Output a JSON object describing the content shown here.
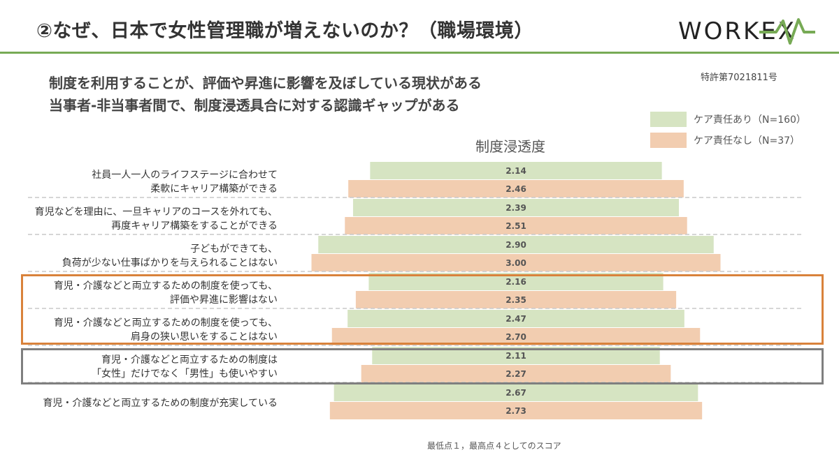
{
  "slide": {
    "title": "②なぜ、日本で女性管理職が増えないのか？（職場環境）",
    "logo": "WORKEX",
    "headline1": "制度を利用することが、評価や昇進に影響を及ぼしている現状がある",
    "headline2": "当事者-非当事者間で、制度浸透具合に対する認識ギャップがある",
    "patent": "特許第7021811号",
    "note": "最低点１，最高点４としてのスコア"
  },
  "colors": {
    "green": "#d6e4c2",
    "orange": "#f2cdb0",
    "rule": "#77aa55",
    "highlight_orange": "#d9823b",
    "highlight_gray": "#7f7f7f"
  },
  "chart_data": {
    "type": "bar",
    "orientation": "horizontal-centered",
    "title": "制度浸透度",
    "scale_note": "最低点１，最高点４としてのスコア",
    "series": [
      {
        "name": "ケア責任あり（N=160）",
        "color": "#d6e4c2",
        "values": [
          2.14,
          2.39,
          2.9,
          2.16,
          2.47,
          2.11,
          2.67
        ]
      },
      {
        "name": "ケア責任なし（N=37）",
        "color": "#f2cdb0",
        "values": [
          2.46,
          2.51,
          3.0,
          2.35,
          2.7,
          2.27,
          2.73
        ]
      }
    ],
    "value_labels": {
      "with_care": [
        "2.14",
        "2.39",
        "2.90",
        "2.16",
        "2.47",
        "2.11",
        "2.67"
      ],
      "without_care": [
        "2.46",
        "2.51",
        "3.00",
        "2.35",
        "2.70",
        "2.27",
        "2.73"
      ]
    },
    "categories": [
      {
        "line1": "社員一人一人のライフステージに合わせて",
        "line2": "柔軟にキャリア構築ができる"
      },
      {
        "line1": "育児などを理由に、一旦キャリアのコースを外れても、",
        "line2": "再度キャリア構築をすることができる"
      },
      {
        "line1": "子どもができても、",
        "line2": "負荷が少ない仕事ばかりを与えられることはない"
      },
      {
        "line1": "育児・介護などと両立するための制度を使っても、",
        "line2": "評価や昇進に影響はない"
      },
      {
        "line1": "育児・介護などと両立するための制度を使っても、",
        "line2": "肩身の狭い思いをすることはない"
      },
      {
        "line1": "育児・介護などと両立するための制度は",
        "line2": "「女性」だけでなく「男性」も使いやすい"
      },
      {
        "line1": "育児・介護などと両立するための制度が充実している",
        "line2": ""
      }
    ],
    "highlighted_rows": {
      "orange": [
        3,
        4
      ],
      "gray": [
        5
      ]
    }
  }
}
